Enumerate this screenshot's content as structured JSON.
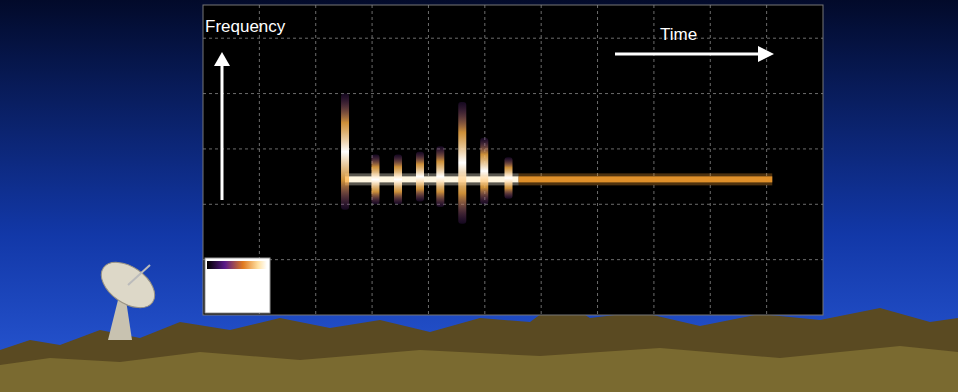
{
  "chart_data": {
    "type": "spectrogram",
    "x_label": "Time",
    "y_label": "Frequency",
    "xlim": [
      0,
      11
    ],
    "ylim": [
      0,
      5.6
    ],
    "xticks": [
      1,
      2,
      3,
      4,
      5,
      6,
      7,
      8,
      9,
      10
    ],
    "yticks": [
      1,
      2,
      3,
      4,
      5
    ],
    "grid": true,
    "tick_labels": false,
    "carrier": {
      "frequency": 2.45,
      "segments": [
        {
          "start": 2.52,
          "end": 5.6,
          "color": "#fff6e0"
        },
        {
          "start": 5.6,
          "end": 10.1,
          "color": "#e0902a"
        }
      ]
    },
    "pulses": {
      "t": [
        2.52,
        3.06,
        3.46,
        3.85,
        4.21,
        4.6,
        4.99,
        5.42
      ],
      "low": [
        1.9,
        2.0,
        2.0,
        2.05,
        1.95,
        1.65,
        2.0,
        2.1
      ],
      "high": [
        4.0,
        2.9,
        2.9,
        2.95,
        3.05,
        3.85,
        3.2,
        2.85
      ],
      "color": "#ffb347"
    }
  }
}
